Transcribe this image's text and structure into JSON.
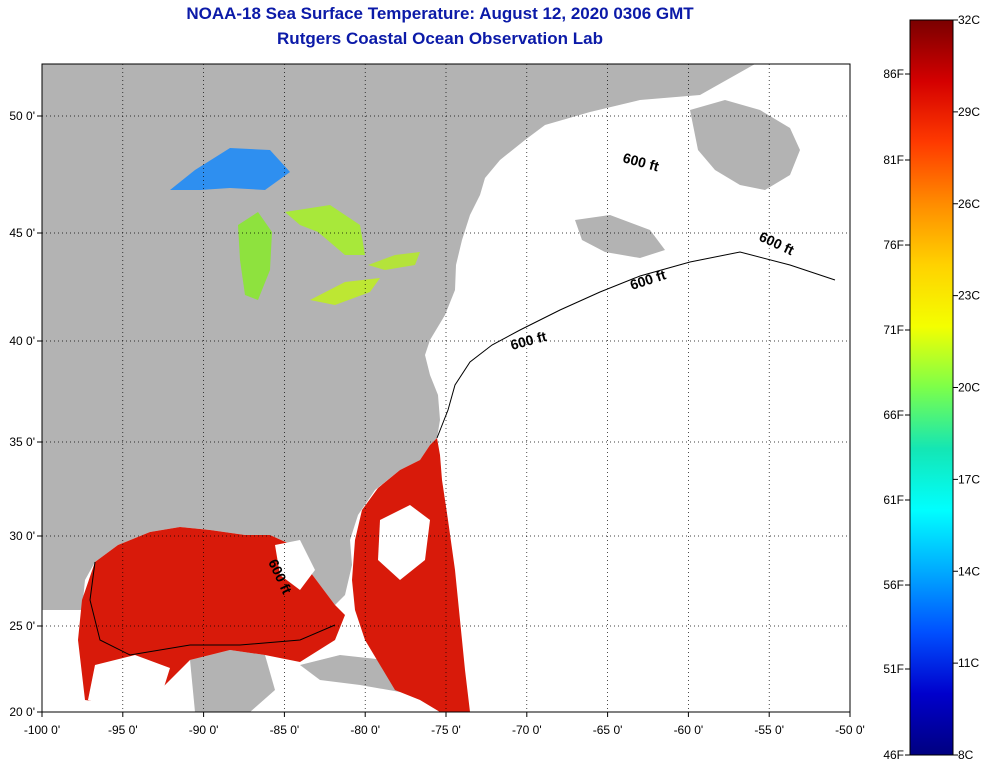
{
  "title": {
    "line1": "NOAA-18 Sea Surface Temperature:  August 12, 2020 0306 GMT",
    "line2": "Rutgers Coastal Ocean Observation Lab"
  },
  "axes": {
    "lon_labels": [
      "-100 0'",
      "-95 0'",
      "-90 0'",
      "-85 0'",
      "-80 0'",
      "-75 0'",
      "-70 0'",
      "-65 0'",
      "-60 0'",
      "-55 0'",
      "-50 0'"
    ],
    "lat_labels": [
      "50 0'",
      "45 0'",
      "40 0'",
      "35 0'",
      "30 0'",
      "25 0'",
      "20 0'"
    ]
  },
  "depth_contour_label": "600 ft",
  "colorbar": {
    "celsius": [
      "32C",
      "29C",
      "26C",
      "23C",
      "20C",
      "17C",
      "14C",
      "11C",
      "8C"
    ],
    "fahrenheit": [
      "86F",
      "81F",
      "76F",
      "71F",
      "66F",
      "61F",
      "56F",
      "51F",
      "46F"
    ],
    "colors": [
      "#7a0000",
      "#d40000",
      "#ff3a00",
      "#ff8c00",
      "#ffd200",
      "#f4ff00",
      "#7cff4a",
      "#14e6b4",
      "#00ffff",
      "#00aaff",
      "#0050ff",
      "#0000cc",
      "#000080"
    ]
  },
  "colors": {
    "land": "#b3b3b3",
    "ocean_nodata": "#ffffff",
    "sst_warm": "#d81a0a",
    "sst_lake": "#8ee23e",
    "title": "#0b1aa8"
  }
}
